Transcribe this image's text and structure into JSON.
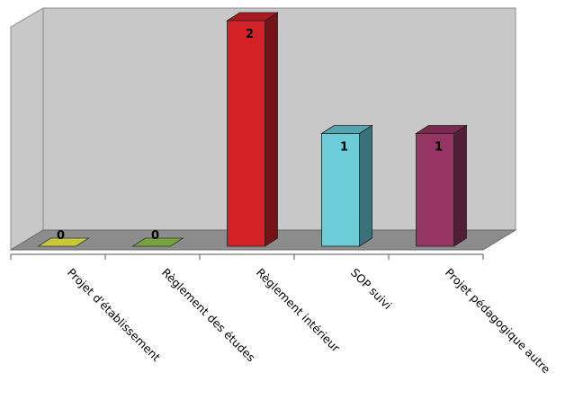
{
  "chart_data": {
    "type": "bar",
    "categories": [
      "Projet d'établissement",
      "Règlement des études",
      "Règlement intérieur",
      "SOP suivi",
      "Projet pédagogique autre"
    ],
    "values": [
      0,
      0,
      2,
      1,
      1
    ],
    "data_labels": [
      "0",
      "0",
      "2",
      "1",
      "1"
    ],
    "colors": [
      "#c8c83a",
      "#77a33c",
      "#d42027",
      "#6ccdd9",
      "#963463"
    ],
    "ylim": [
      0,
      2
    ],
    "grid": false,
    "legend": "none",
    "three_d": true
  }
}
